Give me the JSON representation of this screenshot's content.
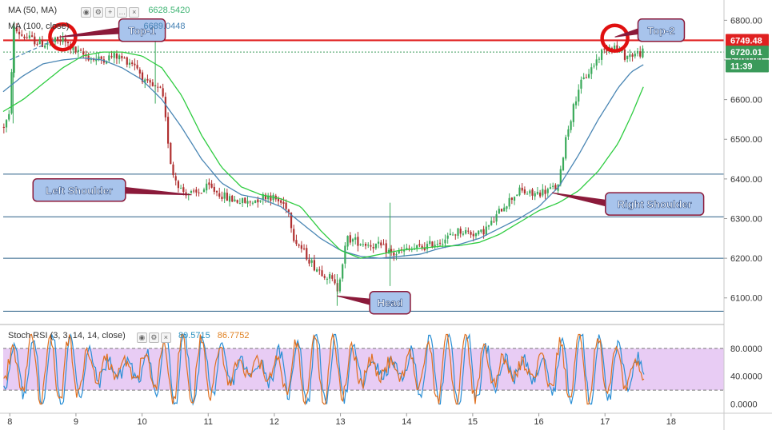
{
  "indicators": {
    "ma50_label": "MA (50, MA)",
    "ma50_value": "6628.5420",
    "ma100_label": "MA (100, close)",
    "ma100_value": "6689.0448",
    "stoch_label": "Stoch RSI (3, 3, 14, 14, close)",
    "stoch_k_value": "80.5715",
    "stoch_d_value": "86.7752"
  },
  "colors": {
    "ma50": "#2ecc40",
    "ma100": "#4a86b4",
    "candle_up": "#3aaa5a",
    "candle_down": "#b03030",
    "resistance": "#e02020",
    "callout_fill": "#a8c4ec",
    "callout_border": "#8b1a3a",
    "stoch_k": "#2a8fd5",
    "stoch_d": "#e07020",
    "stoch_band": "#e8ccf4",
    "price_tag_last": "#3a9a5a",
    "price_tag_res": "#e02020"
  },
  "chart_data": {
    "type": "candlestick",
    "price_axis": {
      "ylim": [
        6035,
        6835
      ],
      "ticks": [
        "6800.00",
        "6700.00",
        "6600.00",
        "6500.00",
        "6400.00",
        "6300.00",
        "6200.00",
        "6100.00"
      ]
    },
    "x_axis": {
      "xlim": [
        7.9,
        18.8
      ],
      "ticks": [
        "8",
        "9",
        "10",
        "11",
        "12",
        "13",
        "14",
        "15",
        "16",
        "17",
        "18"
      ]
    },
    "price_points": [
      [
        7.9,
        6530
      ],
      [
        8.0,
        6560
      ],
      [
        8.05,
        6780
      ],
      [
        8.2,
        6760
      ],
      [
        8.5,
        6740
      ],
      [
        8.8,
        6750
      ],
      [
        9.0,
        6720
      ],
      [
        9.3,
        6700
      ],
      [
        9.6,
        6710
      ],
      [
        9.9,
        6690
      ],
      [
        10.05,
        6640
      ],
      [
        10.3,
        6620
      ],
      [
        10.45,
        6420
      ],
      [
        10.6,
        6370
      ],
      [
        10.8,
        6360
      ],
      [
        11.0,
        6380
      ],
      [
        11.3,
        6350
      ],
      [
        11.6,
        6340
      ],
      [
        11.9,
        6360
      ],
      [
        12.2,
        6330
      ],
      [
        12.3,
        6250
      ],
      [
        12.6,
        6180
      ],
      [
        12.85,
        6150
      ],
      [
        12.95,
        6120
      ],
      [
        13.1,
        6250
      ],
      [
        13.3,
        6240
      ],
      [
        13.6,
        6230
      ],
      [
        13.8,
        6210
      ],
      [
        14.0,
        6220
      ],
      [
        14.3,
        6230
      ],
      [
        14.6,
        6250
      ],
      [
        14.8,
        6270
      ],
      [
        15.1,
        6260
      ],
      [
        15.3,
        6290
      ],
      [
        15.45,
        6330
      ],
      [
        15.7,
        6370
      ],
      [
        15.9,
        6360
      ],
      [
        16.1,
        6370
      ],
      [
        16.3,
        6380
      ],
      [
        16.4,
        6500
      ],
      [
        16.6,
        6630
      ],
      [
        16.8,
        6680
      ],
      [
        16.95,
        6720
      ],
      [
        17.1,
        6740
      ],
      [
        17.3,
        6710
      ],
      [
        17.6,
        6720
      ]
    ],
    "ma50_points": [
      [
        7.9,
        6570
      ],
      [
        8.2,
        6600
      ],
      [
        8.5,
        6640
      ],
      [
        8.8,
        6680
      ],
      [
        9.1,
        6710
      ],
      [
        9.4,
        6720
      ],
      [
        9.7,
        6720
      ],
      [
        10.0,
        6710
      ],
      [
        10.3,
        6680
      ],
      [
        10.6,
        6610
      ],
      [
        10.9,
        6510
      ],
      [
        11.2,
        6430
      ],
      [
        11.5,
        6380
      ],
      [
        11.8,
        6360
      ],
      [
        12.1,
        6350
      ],
      [
        12.4,
        6330
      ],
      [
        12.7,
        6270
      ],
      [
        13.0,
        6220
      ],
      [
        13.3,
        6200
      ],
      [
        13.6,
        6210
      ],
      [
        13.9,
        6220
      ],
      [
        14.2,
        6225
      ],
      [
        14.5,
        6230
      ],
      [
        14.8,
        6232
      ],
      [
        15.1,
        6240
      ],
      [
        15.4,
        6260
      ],
      [
        15.7,
        6290
      ],
      [
        16.0,
        6320
      ],
      [
        16.3,
        6340
      ],
      [
        16.6,
        6370
      ],
      [
        16.9,
        6420
      ],
      [
        17.2,
        6490
      ],
      [
        17.4,
        6560
      ],
      [
        17.6,
        6640
      ]
    ],
    "ma100_points": [
      [
        7.9,
        6620
      ],
      [
        8.2,
        6660
      ],
      [
        8.5,
        6690
      ],
      [
        8.8,
        6700
      ],
      [
        9.1,
        6705
      ],
      [
        9.4,
        6700
      ],
      [
        9.7,
        6680
      ],
      [
        10.0,
        6650
      ],
      [
        10.3,
        6600
      ],
      [
        10.6,
        6530
      ],
      [
        10.9,
        6450
      ],
      [
        11.2,
        6390
      ],
      [
        11.5,
        6360
      ],
      [
        11.8,
        6350
      ],
      [
        12.1,
        6330
      ],
      [
        12.4,
        6290
      ],
      [
        12.7,
        6250
      ],
      [
        13.0,
        6220
      ],
      [
        13.3,
        6205
      ],
      [
        13.6,
        6200
      ],
      [
        13.9,
        6205
      ],
      [
        14.2,
        6210
      ],
      [
        14.5,
        6225
      ],
      [
        14.8,
        6235
      ],
      [
        15.1,
        6250
      ],
      [
        15.4,
        6275
      ],
      [
        15.7,
        6300
      ],
      [
        16.0,
        6330
      ],
      [
        16.3,
        6380
      ],
      [
        16.6,
        6460
      ],
      [
        16.9,
        6550
      ],
      [
        17.2,
        6630
      ],
      [
        17.4,
        6670
      ],
      [
        17.6,
        6690
      ]
    ],
    "horizontal_levels": [
      {
        "price": 6750.34,
        "role": "top"
      },
      {
        "price": 6749.48,
        "role": "resistance"
      },
      {
        "price": 6720.01,
        "role": "last"
      },
      {
        "price": 6412.0,
        "role": "level"
      },
      {
        "price": 6304.5,
        "role": "level"
      },
      {
        "price": 6199.9,
        "role": "level"
      },
      {
        "price": 6066.6,
        "role": "level"
      }
    ],
    "price_labels": [
      {
        "text": "6749.48",
        "price": 6749.48,
        "style": "res"
      },
      {
        "text": "6720.01",
        "price": 6720.01,
        "style": "last"
      },
      {
        "text": "11:39",
        "price": 6685,
        "style": "last"
      }
    ],
    "annotations": [
      {
        "text": "Top-1",
        "x": 10.0,
        "y": 6775,
        "tip_x": 8.75,
        "tip_y": 6758
      },
      {
        "text": "Top-2",
        "x": 17.85,
        "y": 6775,
        "tip_x": 17.15,
        "tip_y": 6758
      },
      {
        "text": "Left Shoulder",
        "x": 9.05,
        "y": 6372,
        "tip_x": 10.75,
        "tip_y": 6360
      },
      {
        "text": "Right Shoulder",
        "x": 17.75,
        "y": 6337,
        "tip_x": 16.2,
        "tip_y": 6365
      },
      {
        "text": "Head",
        "x": 13.75,
        "y": 6088,
        "tip_x": 12.95,
        "tip_y": 6105
      }
    ],
    "circles": [
      {
        "x": 8.8,
        "y": 6758
      },
      {
        "x": 17.15,
        "y": 6755
      }
    ],
    "stoch": {
      "ylim": [
        -12,
        112
      ],
      "ticks": [
        "80.0000",
        "40.0000",
        "0.0000"
      ],
      "upper": 80,
      "lower": 20
    }
  }
}
